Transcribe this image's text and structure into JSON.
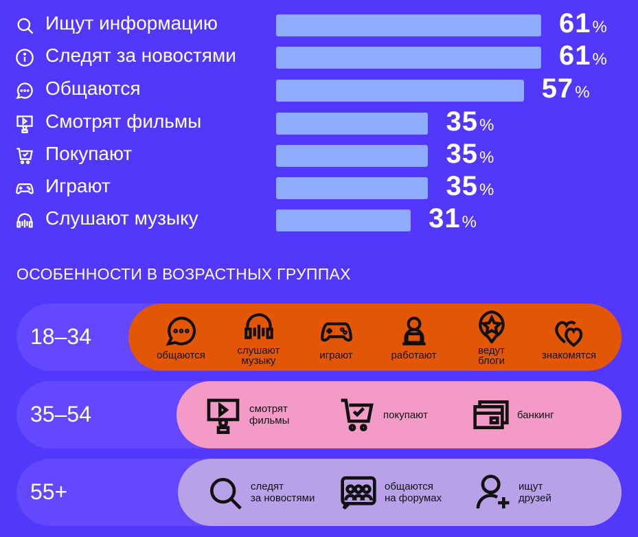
{
  "chart_data": {
    "type": "bar",
    "orientation": "horizontal",
    "categories": [
      "Ищут информацию",
      "Следят за новостями",
      "Общаются",
      "Смотрят фильмы",
      "Покупают",
      "Играют",
      "Слушают музыку"
    ],
    "icons": [
      "search-icon",
      "info-icon",
      "chat-icon",
      "video-icon",
      "cart-icon",
      "gamepad-icon",
      "headphones-icon"
    ],
    "values": [
      61,
      61,
      57,
      35,
      35,
      35,
      31
    ],
    "unit": "%",
    "bar_color": "#8eabfd"
  },
  "section_title": "ОСОБЕННОСТИ В ВОЗРАСТНЫХ ГРУППАХ",
  "groups": [
    {
      "age": "18–34",
      "color": "#e25605",
      "items": [
        {
          "icon": "chat-icon",
          "label": "общаются"
        },
        {
          "icon": "headphones-icon",
          "label": "слушают\nмузыку"
        },
        {
          "icon": "gamepad-icon",
          "label": "играют"
        },
        {
          "icon": "laptop-user-icon",
          "label": "работают"
        },
        {
          "icon": "star-badge-icon",
          "label": "ведут\nблоги"
        },
        {
          "icon": "hearts-icon",
          "label": "знакомятся"
        }
      ]
    },
    {
      "age": "35–54",
      "color": "#f39ac7",
      "items": [
        {
          "icon": "video-icon",
          "label": "смотрят\nфильмы"
        },
        {
          "icon": "cart-icon",
          "label": "покупают"
        },
        {
          "icon": "cards-icon",
          "label": "банкинг"
        }
      ]
    },
    {
      "age": "55+",
      "color": "#b9a1ea",
      "items": [
        {
          "icon": "search-icon",
          "label": "следят\nза новостями"
        },
        {
          "icon": "forum-icon",
          "label": "общаются\nна форумах"
        },
        {
          "icon": "add-user-icon",
          "label": "ищут\nдрузей"
        }
      ]
    }
  ]
}
